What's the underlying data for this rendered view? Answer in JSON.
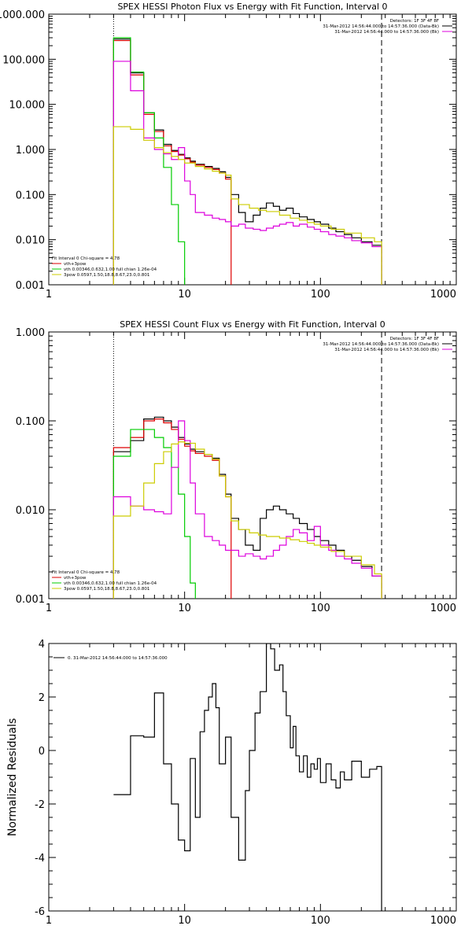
{
  "chart_data": [
    {
      "type": "line",
      "title": "SPEX HESSI Photon Flux vs Energy with Fit Function, Interval 0",
      "xlabel": "",
      "ylabel": "",
      "xscale": "log",
      "yscale": "log",
      "xlim": [
        1,
        1000
      ],
      "ylim": [
        0.001,
        1000
      ],
      "x_ticks": [
        1,
        10,
        100,
        1000
      ],
      "x_tick_labels": [
        "1",
        "10",
        "100",
        "1000"
      ],
      "y_ticks": [
        0.001,
        0.01,
        0.1,
        1,
        10,
        100,
        1000
      ],
      "y_tick_labels": [
        "0.001",
        "0.010",
        "0.100",
        "1.000",
        "10.000",
        "100.000",
        "1000.000"
      ],
      "vlines": [
        {
          "x": 3,
          "style": "dotted"
        },
        {
          "x": 282,
          "style": "dashed"
        }
      ],
      "legend_top_right": [
        "Detectors: 1F 3F 4F 8F",
        "31-Mar-2012 14:56:44.000 to 14:57:36.000 (Data-Bk)",
        "31-Mar-2012 14:56:44.000 to 14:57:36.000 (Bk)"
      ],
      "legend_bottom_left": [
        "Fit Interval 0   Chi-square = 4.78",
        "vth+3pow",
        "vth 0.00346,0.632,1.00  full chian 1.26e-04",
        "3pow 0.0597,1.50,18.8,8.67,23.0,0.801"
      ],
      "series": [
        {
          "color": "#000000",
          "x": [
            3,
            4,
            5,
            6,
            7,
            8,
            9,
            10,
            11,
            12,
            14,
            16,
            18,
            20,
            22,
            25,
            28,
            32,
            36,
            40,
            45,
            50,
            56,
            63,
            70,
            80,
            90,
            100,
            115,
            130,
            150,
            170,
            200,
            240,
            282
          ],
          "y": [
            280,
            50,
            6.5,
            2.7,
            1.3,
            0.95,
            0.78,
            0.65,
            0.55,
            0.47,
            0.42,
            0.38,
            0.32,
            0.24,
            0.1,
            0.04,
            0.025,
            0.035,
            0.05,
            0.065,
            0.055,
            0.045,
            0.05,
            0.038,
            0.032,
            0.028,
            0.025,
            0.022,
            0.018,
            0.015,
            0.013,
            0.011,
            0.009,
            0.0075,
            0.0065
          ]
        },
        {
          "color": "#dd0000",
          "x": [
            3,
            4,
            5,
            6,
            7,
            8,
            9,
            10,
            11,
            12,
            14,
            16,
            18,
            20,
            22
          ],
          "y": [
            260,
            45,
            6,
            2.5,
            1.2,
            0.9,
            0.75,
            0.62,
            0.52,
            0.45,
            0.4,
            0.36,
            0.3,
            0.22,
            0.095
          ]
        },
        {
          "color": "#00cc00",
          "x": [
            3,
            4,
            5,
            6,
            7,
            8,
            9,
            10
          ],
          "y": [
            300,
            52,
            6.5,
            1.8,
            0.4,
            0.06,
            0.009,
            0.001
          ]
        },
        {
          "color": "#dd00dd",
          "x": [
            3,
            4,
            5,
            6,
            7,
            8,
            9,
            10,
            11,
            12,
            14,
            16,
            18,
            20,
            22,
            25,
            28,
            32,
            36,
            40,
            45,
            50,
            56,
            63,
            70,
            80,
            90,
            100,
            115,
            130,
            150,
            170,
            200,
            240,
            282
          ],
          "y": [
            90,
            20,
            1.8,
            1.0,
            0.8,
            0.6,
            1.1,
            0.2,
            0.1,
            0.04,
            0.035,
            0.03,
            0.028,
            0.025,
            0.02,
            0.022,
            0.018,
            0.017,
            0.016,
            0.018,
            0.02,
            0.022,
            0.024,
            0.02,
            0.022,
            0.019,
            0.017,
            0.015,
            0.013,
            0.012,
            0.011,
            0.0095,
            0.0085,
            0.007,
            0.0055
          ]
        },
        {
          "color": "#cccc00",
          "x": [
            3,
            4,
            5,
            6,
            7,
            8,
            9,
            10,
            12,
            14,
            16,
            18,
            20,
            22,
            25,
            30,
            35,
            40,
            50,
            60,
            70,
            80,
            90,
            100,
            120,
            150,
            200,
            250,
            282
          ],
          "y": [
            3.2,
            2.8,
            1.6,
            1.1,
            0.85,
            0.7,
            0.6,
            0.5,
            0.42,
            0.37,
            0.33,
            0.3,
            0.27,
            0.08,
            0.06,
            0.05,
            0.045,
            0.042,
            0.035,
            0.03,
            0.027,
            0.024,
            0.022,
            0.02,
            0.017,
            0.014,
            0.011,
            0.009,
            0.008
          ]
        }
      ]
    },
    {
      "type": "line",
      "title": "SPEX HESSI Count Flux vs Energy with Fit Function, Interval 0",
      "xlabel": "",
      "ylabel": "",
      "xscale": "log",
      "yscale": "log",
      "xlim": [
        1,
        1000
      ],
      "ylim": [
        0.001,
        1
      ],
      "x_ticks": [
        1,
        10,
        100,
        1000
      ],
      "x_tick_labels": [
        "1",
        "10",
        "100",
        "1000"
      ],
      "y_ticks": [
        0.001,
        0.01,
        0.1,
        1
      ],
      "y_tick_labels": [
        "0.001",
        "0.010",
        "0.100",
        "1.000"
      ],
      "vlines": [
        {
          "x": 3,
          "style": "dotted"
        },
        {
          "x": 282,
          "style": "dashed"
        }
      ],
      "legend_top_right": [
        "Detectors: 1F 3F 4F 8F",
        "31-Mar-2012 14:56:44.000 to 14:57:36.000 (Data-Bk)",
        "31-Mar-2012 14:56:44.000 to 14:57:36.000 (Bk)"
      ],
      "legend_bottom_left": [
        "Fit Interval 0   Chi-square = 4.78",
        "vth+3pow",
        "vth 0.00346,0.632,1.00  full chian 1.26e-04",
        "3pow 0.0597,1.50,18.8,8.67,23.0,0.801"
      ],
      "series": [
        {
          "color": "#000000",
          "x": [
            3,
            4,
            5,
            6,
            7,
            8,
            9,
            10,
            11,
            12,
            14,
            16,
            18,
            20,
            22,
            25,
            28,
            32,
            36,
            40,
            45,
            50,
            56,
            63,
            70,
            80,
            90,
            100,
            115,
            130,
            150,
            170,
            200,
            240,
            282
          ],
          "y": [
            0.045,
            0.06,
            0.105,
            0.11,
            0.1,
            0.085,
            0.065,
            0.055,
            0.048,
            0.045,
            0.042,
            0.038,
            0.025,
            0.015,
            0.008,
            0.006,
            0.004,
            0.0035,
            0.008,
            0.01,
            0.011,
            0.01,
            0.009,
            0.008,
            0.007,
            0.006,
            0.005,
            0.0045,
            0.004,
            0.0035,
            0.003,
            0.0027,
            0.0023,
            0.0018,
            0.0015
          ]
        },
        {
          "color": "#dd0000",
          "x": [
            3,
            4,
            5,
            6,
            7,
            8,
            9,
            10,
            11,
            12,
            14,
            16,
            18,
            20,
            22
          ],
          "y": [
            0.05,
            0.065,
            0.1,
            0.105,
            0.095,
            0.08,
            0.062,
            0.052,
            0.046,
            0.043,
            0.04,
            0.036,
            0.024,
            0.014,
            0.0075
          ]
        },
        {
          "color": "#00cc00",
          "x": [
            3,
            4,
            5,
            6,
            7,
            8,
            9,
            10,
            11,
            12
          ],
          "y": [
            0.04,
            0.08,
            0.08,
            0.065,
            0.05,
            0.03,
            0.015,
            0.005,
            0.0015,
            0.001
          ]
        },
        {
          "color": "#dd00dd",
          "x": [
            3,
            4,
            5,
            6,
            7,
            8,
            9,
            10,
            11,
            12,
            14,
            16,
            18,
            20,
            22,
            25,
            28,
            32,
            36,
            40,
            45,
            50,
            56,
            63,
            70,
            80,
            90,
            100,
            115,
            130,
            150,
            170,
            200,
            240,
            282
          ],
          "y": [
            0.014,
            0.011,
            0.01,
            0.0095,
            0.009,
            0.03,
            0.1,
            0.06,
            0.02,
            0.009,
            0.005,
            0.0045,
            0.004,
            0.0035,
            0.0035,
            0.003,
            0.0032,
            0.003,
            0.0028,
            0.003,
            0.0035,
            0.004,
            0.005,
            0.006,
            0.0055,
            0.0045,
            0.0065,
            0.004,
            0.0035,
            0.003,
            0.0028,
            0.0025,
            0.0022,
            0.0018,
            0.0014
          ]
        },
        {
          "color": "#cccc00",
          "x": [
            3,
            4,
            5,
            6,
            7,
            8,
            9,
            10,
            12,
            14,
            16,
            18,
            20,
            22,
            25,
            30,
            35,
            40,
            50,
            60,
            70,
            80,
            90,
            100,
            120,
            150,
            200,
            250,
            282
          ],
          "y": [
            0.0085,
            0.011,
            0.02,
            0.033,
            0.045,
            0.055,
            0.058,
            0.056,
            0.048,
            0.042,
            0.037,
            0.024,
            0.014,
            0.0075,
            0.006,
            0.0055,
            0.0052,
            0.005,
            0.0048,
            0.0046,
            0.0044,
            0.0042,
            0.004,
            0.0038,
            0.0034,
            0.003,
            0.0024,
            0.0019,
            0.0016
          ]
        }
      ]
    },
    {
      "type": "line",
      "title": "",
      "xlabel": "",
      "ylabel": "Normalized Residuals",
      "xscale": "log",
      "yscale": "linear",
      "xlim": [
        1,
        1000
      ],
      "ylim": [
        -6,
        4
      ],
      "x_ticks": [
        1,
        10,
        100,
        1000
      ],
      "x_tick_labels": [
        "1",
        "10",
        "100",
        "1000"
      ],
      "y_ticks": [
        -6,
        -4,
        -2,
        0,
        2,
        4
      ],
      "y_tick_labels": [
        "-6",
        "-4",
        "-2",
        "0",
        "2",
        "4"
      ],
      "legend_top_left": [
        "0. 31-Mar-2012 14:56:44.000 to 14:57:36.000"
      ],
      "series": [
        {
          "color": "#000000",
          "x": [
            3,
            4,
            5,
            6,
            7,
            8,
            9,
            10,
            11,
            12,
            13,
            14,
            15,
            16,
            17,
            18,
            20,
            22,
            25,
            28,
            30,
            33,
            36,
            40,
            43,
            46,
            50,
            53,
            56,
            60,
            63,
            66,
            70,
            75,
            80,
            85,
            90,
            95,
            100,
            110,
            120,
            130,
            140,
            150,
            170,
            200,
            230,
            260,
            282
          ],
          "y": [
            -1.65,
            0.55,
            0.5,
            2.15,
            -0.5,
            -2,
            -3.35,
            -3.75,
            -0.3,
            -2.5,
            0.7,
            1.5,
            2,
            2.5,
            1.6,
            -0.5,
            0.5,
            -2.5,
            -4.1,
            -1.5,
            0,
            1.4,
            2.2,
            4,
            3.8,
            3,
            3.2,
            2.2,
            1.3,
            0.1,
            0.9,
            -0.2,
            -0.8,
            -0.2,
            -1,
            -0.5,
            -0.7,
            -0.3,
            -1.2,
            -0.5,
            -1.1,
            -1.4,
            -0.8,
            -1.1,
            -0.4,
            -1,
            -0.7,
            -0.6,
            -6
          ]
        }
      ]
    }
  ]
}
